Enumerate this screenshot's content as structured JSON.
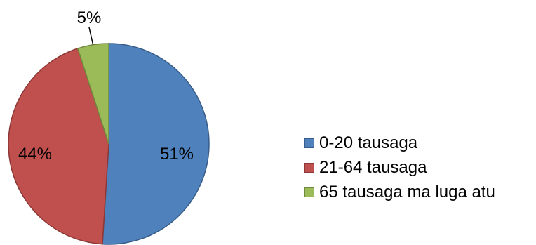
{
  "chart_data": {
    "type": "pie",
    "title": "",
    "slices": [
      {
        "label": "0-20 tausaga",
        "value": 51,
        "display": "51%",
        "color": "#4F81BD",
        "border": "#385D8A"
      },
      {
        "label": "21-64 tausaga",
        "value": 44,
        "display": "44%",
        "color": "#C0504D",
        "border": "#8C3836"
      },
      {
        "label": "65 tausaga ma luga atu",
        "value": 5,
        "display": "5%",
        "color": "#9BBB59",
        "border": "#71893F"
      }
    ],
    "legend_position": "right"
  }
}
